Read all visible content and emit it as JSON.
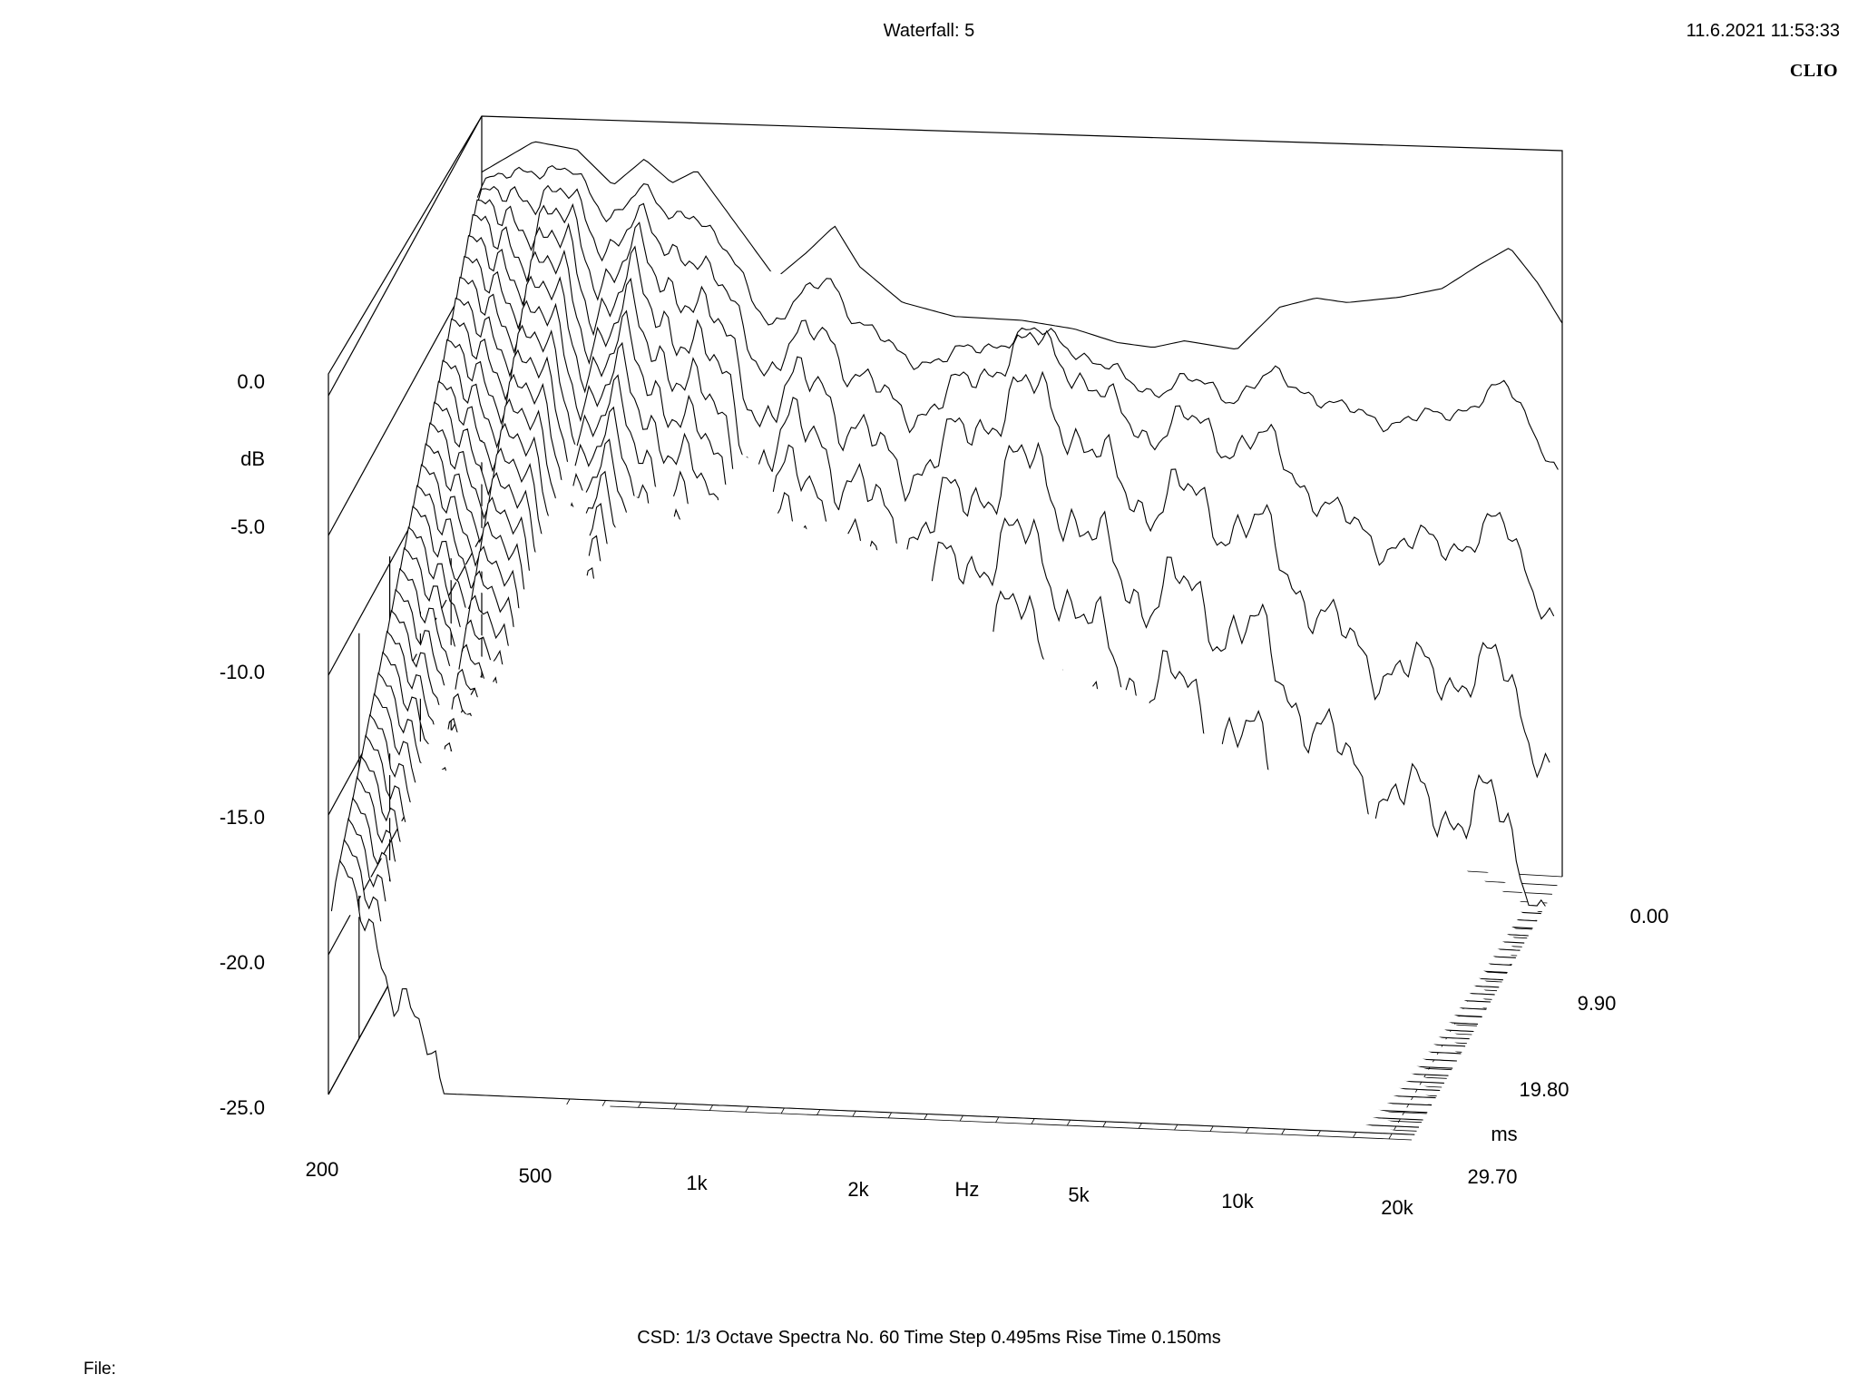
{
  "header": {
    "title": "Waterfall: 5",
    "timestamp": "11.6.2021 11:53:33",
    "brand": "CLIO"
  },
  "footer": {
    "params": "CSD:   1/3 Octave   Spectra No. 60   Time Step 0.495ms   Rise Time 0.150ms",
    "file_label": "File:"
  },
  "chart_data": {
    "type": "waterfall",
    "title": "Waterfall: 5",
    "xlabel": "Hz",
    "ylabel": "dB",
    "zlabel": "ms",
    "x_scale": "log",
    "xlim": [
      200,
      20000
    ],
    "ylim": [
      -25.0,
      0.0
    ],
    "zlim": [
      0.0,
      29.7
    ],
    "x_ticks": [
      {
        "value": 200,
        "label": "200"
      },
      {
        "value": 500,
        "label": "500"
      },
      {
        "value": 1000,
        "label": "1k"
      },
      {
        "value": 2000,
        "label": "2k"
      },
      {
        "value": 5000,
        "label": "5k"
      },
      {
        "value": 10000,
        "label": "10k"
      },
      {
        "value": 20000,
        "label": "20k"
      }
    ],
    "y_ticks": [
      {
        "value": 0.0,
        "label": "0.0"
      },
      {
        "value": -5.0,
        "label": "-5.0"
      },
      {
        "value": -10.0,
        "label": "-10.0"
      },
      {
        "value": -15.0,
        "label": "-15.0"
      },
      {
        "value": -20.0,
        "label": "-20.0"
      },
      {
        "value": -25.0,
        "label": "-25.0"
      }
    ],
    "z_ticks": [
      {
        "value": 0.0,
        "label": "0.00"
      },
      {
        "value": 9.9,
        "label": "9.90"
      },
      {
        "value": 19.8,
        "label": "19.80"
      },
      {
        "value": 29.7,
        "label": "29.70"
      }
    ],
    "spectra_count": 60,
    "time_step_ms": 0.495,
    "rise_time_ms": 0.15,
    "smoothing": "1/3 Octave",
    "base_response": [
      {
        "f": 200,
        "db": -2.0
      },
      {
        "f": 250,
        "db": -0.8
      },
      {
        "f": 300,
        "db": -1.0
      },
      {
        "f": 350,
        "db": -2.2
      },
      {
        "f": 400,
        "db": -1.2
      },
      {
        "f": 450,
        "db": -2.0
      },
      {
        "f": 500,
        "db": -1.5
      },
      {
        "f": 600,
        "db": -3.5
      },
      {
        "f": 700,
        "db": -5.2
      },
      {
        "f": 800,
        "db": -4.2
      },
      {
        "f": 900,
        "db": -3.2
      },
      {
        "f": 1000,
        "db": -4.6
      },
      {
        "f": 1200,
        "db": -5.8
      },
      {
        "f": 1500,
        "db": -6.2
      },
      {
        "f": 2000,
        "db": -6.2
      },
      {
        "f": 2500,
        "db": -6.4
      },
      {
        "f": 3000,
        "db": -6.8
      },
      {
        "f": 3500,
        "db": -6.9
      },
      {
        "f": 4000,
        "db": -6.6
      },
      {
        "f": 5000,
        "db": -6.8
      },
      {
        "f": 6000,
        "db": -5.2
      },
      {
        "f": 7000,
        "db": -4.8
      },
      {
        "f": 8000,
        "db": -4.9
      },
      {
        "f": 10000,
        "db": -4.6
      },
      {
        "f": 12000,
        "db": -4.2
      },
      {
        "f": 14000,
        "db": -3.3
      },
      {
        "f": 16000,
        "db": -2.6
      },
      {
        "f": 18000,
        "db": -3.8
      },
      {
        "f": 20000,
        "db": -5.2
      }
    ]
  }
}
